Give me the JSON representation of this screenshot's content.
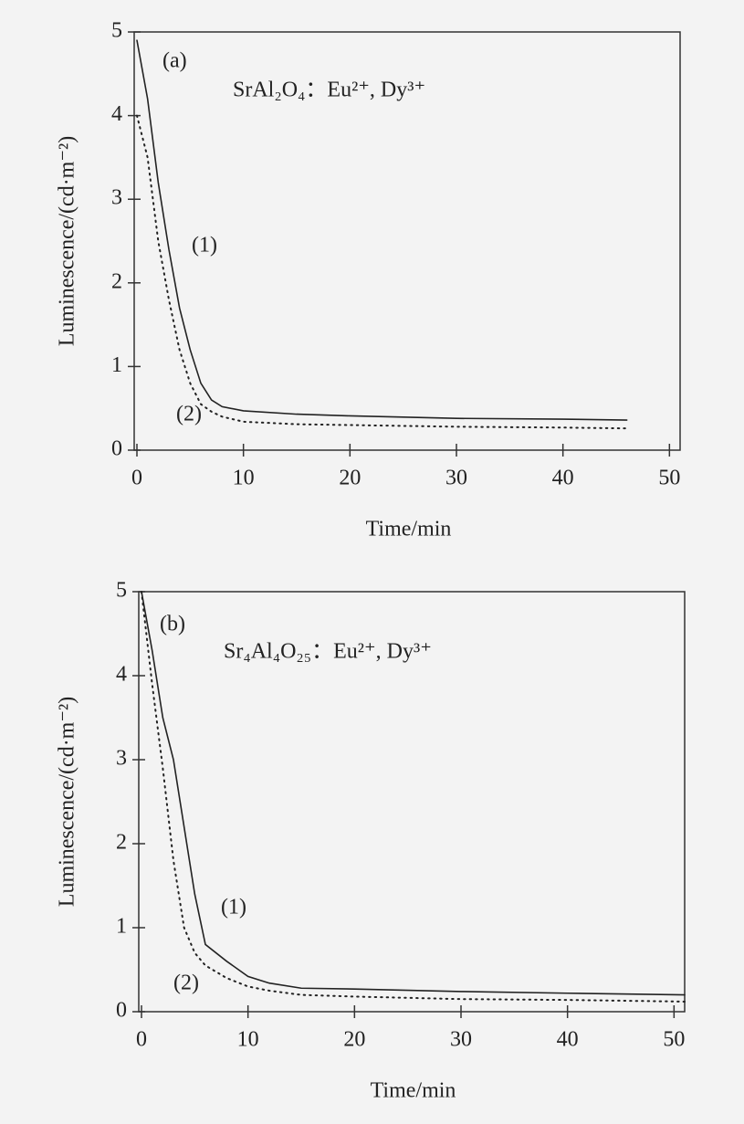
{
  "chart_data": [
    {
      "type": "line",
      "panel_label": "(a)",
      "title": "SrAl₂O₄：Eu²⁺, Dy³⁺",
      "x_label": "Time/min",
      "y_label": "Luminescence/(cd·m⁻²)",
      "x": [
        0,
        1,
        2,
        3,
        4,
        5,
        6,
        7,
        8,
        10,
        15,
        20,
        30,
        40,
        46
      ],
      "series": [
        {
          "name": "(1)",
          "color": "#222222",
          "line_style": "solid",
          "values": [
            4.9,
            4.2,
            3.2,
            2.4,
            1.7,
            1.2,
            0.8,
            0.6,
            0.52,
            0.47,
            0.43,
            0.41,
            0.38,
            0.37,
            0.36
          ]
        },
        {
          "name": "(2)",
          "color": "#222222",
          "line_style": "dotted",
          "values": [
            4.0,
            3.5,
            2.5,
            1.8,
            1.2,
            0.8,
            0.55,
            0.46,
            0.4,
            0.34,
            0.31,
            0.3,
            0.28,
            0.27,
            0.26
          ]
        }
      ],
      "xlim": [
        0,
        51
      ],
      "ylim": [
        0,
        5
      ],
      "xticks": [
        0,
        10,
        20,
        30,
        40,
        50
      ],
      "yticks": [
        0,
        1,
        2,
        3,
        4,
        5
      ]
    },
    {
      "type": "line",
      "panel_label": "(b)",
      "title": "Sr₄Al₄O₂₅：Eu²⁺, Dy³⁺",
      "x_label": "Time/min",
      "y_label": "Luminescence/(cd·m⁻²)",
      "x": [
        0,
        1,
        2,
        3,
        4,
        5,
        6,
        8,
        10,
        12,
        15,
        20,
        30,
        40,
        51
      ],
      "series": [
        {
          "name": "(1)",
          "color": "#222222",
          "line_style": "solid",
          "values": [
            5.0,
            4.3,
            3.5,
            3.0,
            2.2,
            1.4,
            0.8,
            0.6,
            0.42,
            0.34,
            0.28,
            0.27,
            0.24,
            0.22,
            0.2
          ]
        },
        {
          "name": "(2)",
          "color": "#222222",
          "line_style": "dotted",
          "values": [
            5.0,
            3.9,
            2.9,
            1.8,
            1.0,
            0.7,
            0.55,
            0.4,
            0.3,
            0.25,
            0.2,
            0.18,
            0.15,
            0.14,
            0.12
          ]
        }
      ],
      "xlim": [
        0,
        51
      ],
      "ylim": [
        0,
        5
      ],
      "xticks": [
        0,
        10,
        20,
        30,
        40,
        50
      ],
      "yticks": [
        0,
        1,
        2,
        3,
        4,
        5
      ]
    }
  ]
}
